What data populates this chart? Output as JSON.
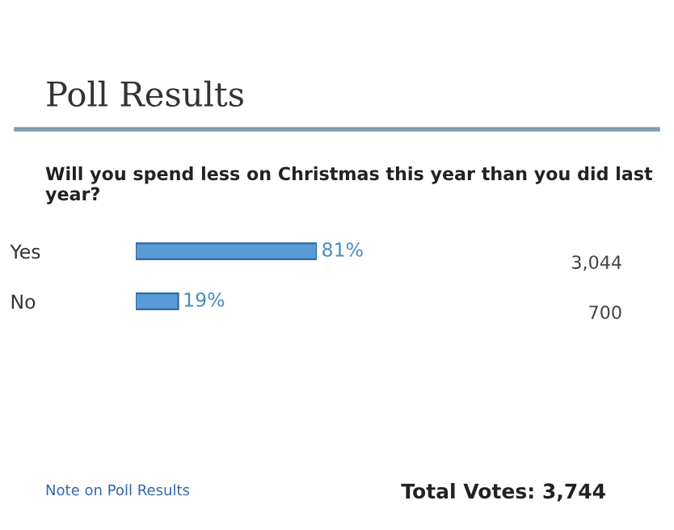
{
  "chart_data": {
    "type": "bar",
    "orientation": "horizontal",
    "title": "Poll Results",
    "subtitle": "Will you spend less on Christmas this year than you did last year?",
    "categories": [
      "Yes",
      "No"
    ],
    "values": [
      81,
      19
    ],
    "value_labels": [
      "81%",
      "19%"
    ],
    "color": "#5b9bd5",
    "tick_labels": "y",
    "grid": false,
    "legend": false,
    "annotations": [
      "3,044",
      "700",
      "Note on Poll Results",
      "Total Votes: 3,744"
    ]
  }
}
